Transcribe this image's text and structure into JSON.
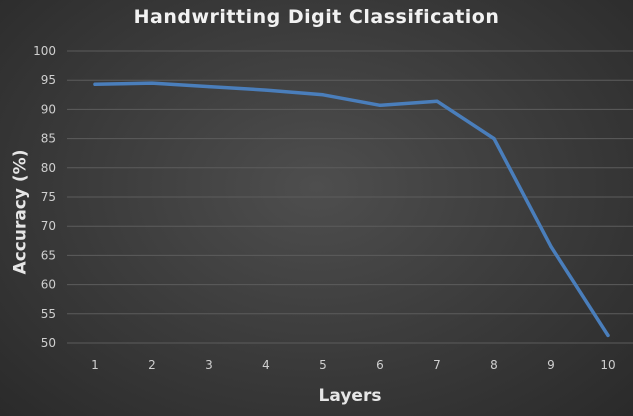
{
  "chart_data": {
    "type": "line",
    "title": "Handwritting  Digit  Classification",
    "xlabel": "Layers",
    "ylabel": "Accuracy (%)",
    "categories": [
      "1",
      "2",
      "3",
      "4",
      "5",
      "6",
      "7",
      "8",
      "9",
      "10"
    ],
    "series": [
      {
        "values": [
          94.3,
          94.5,
          93.9,
          93.3,
          92.5,
          90.7,
          91.4,
          85.0,
          66.5,
          51.3
        ]
      }
    ],
    "yticks": [
      "100",
      "95",
      "90",
      "85",
      "80",
      "75",
      "70",
      "65",
      "60",
      "55",
      "50"
    ],
    "ylim": [
      50,
      100
    ],
    "grid": true,
    "line_color": "#4a7ebb",
    "grid_color": "#5c5c5c",
    "background_color": "#3c3c3c"
  }
}
